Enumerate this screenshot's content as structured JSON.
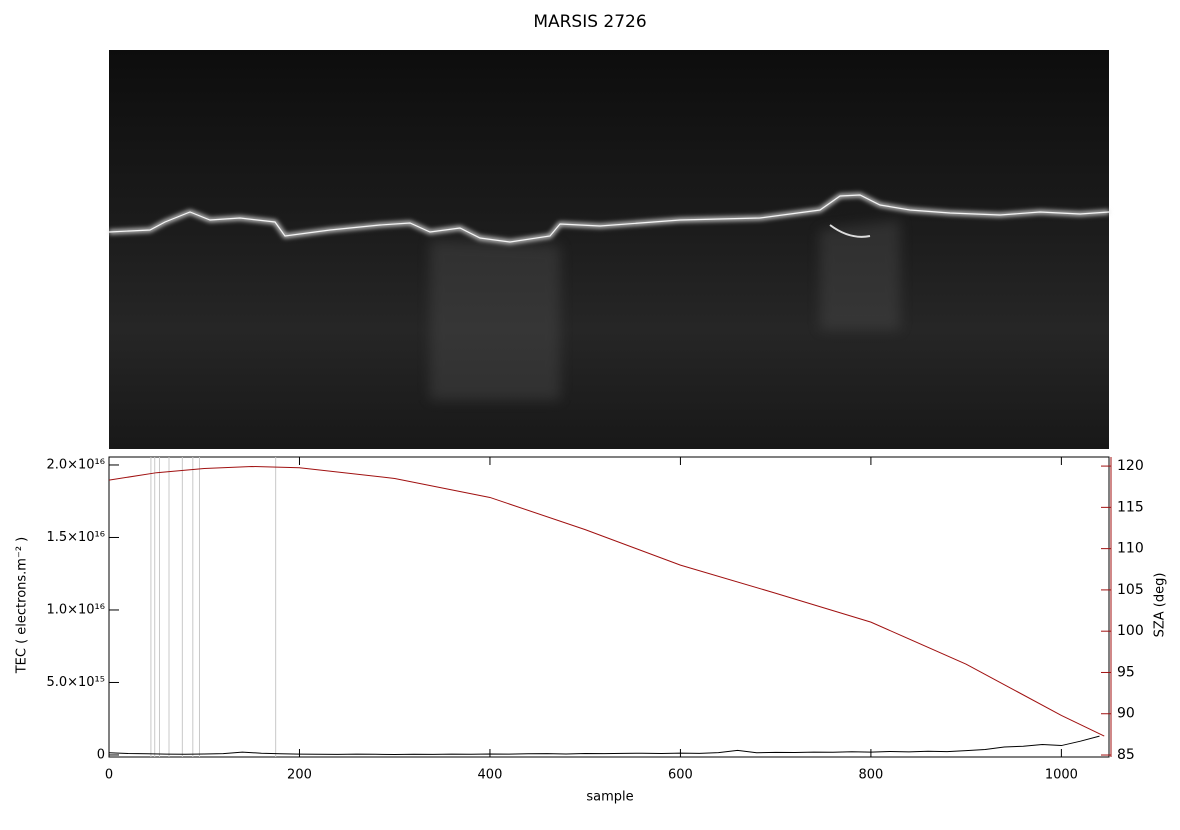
{
  "chart_data": {
    "type": "line",
    "title": "MARSIS 2726",
    "x_label": "sample",
    "y_label": "TEC ( electrons.m⁻² )",
    "y2_label": "SZA (deg)",
    "xlim": [
      0,
      1050
    ],
    "xticks": [
      0,
      200,
      400,
      600,
      800,
      1000
    ],
    "ylim": [
      -140000000000000.0,
      2.055e+16
    ],
    "yticks": [
      0,
      {
        "value": 5000000000000000.0,
        "label": "5.0×10¹⁵"
      },
      {
        "value": 1e+16,
        "label": "1.0×10¹⁶"
      },
      {
        "value": 1.5e+16,
        "label": "1.5×10¹⁶"
      },
      {
        "value": 2e+16,
        "label": "2.0×10¹⁶"
      }
    ],
    "y2lim": [
      84.76,
      121.1
    ],
    "y2ticks": [
      85,
      90,
      95,
      100,
      105,
      110,
      115,
      120
    ],
    "y2_color": "#a01010",
    "vlines": [
      44,
      48,
      53,
      63,
      77,
      88,
      95,
      175
    ],
    "vline_color": "#c8c8c8",
    "series": [
      {
        "name": "TEC",
        "color": "#000000",
        "x": [
          0,
          20,
          40,
          60,
          80,
          100,
          120,
          140,
          160,
          180,
          200,
          220,
          240,
          260,
          280,
          300,
          320,
          340,
          360,
          380,
          400,
          420,
          440,
          460,
          480,
          500,
          520,
          540,
          560,
          580,
          600,
          620,
          640,
          660,
          680,
          700,
          720,
          740,
          760,
          780,
          800,
          820,
          840,
          860,
          880,
          900,
          920,
          940,
          960,
          980,
          1000,
          1020,
          1040
        ],
        "values": [
          150000000000000.0,
          100000000000000.0,
          80000000000000.0,
          60000000000000.0,
          50000000000000.0,
          70000000000000.0,
          90000000000000.0,
          200000000000000.0,
          120000000000000.0,
          80000000000000.0,
          60000000000000.0,
          50000000000000.0,
          40000000000000.0,
          60000000000000.0,
          50000000000000.0,
          30000000000000.0,
          50000000000000.0,
          40000000000000.0,
          60000000000000.0,
          50000000000000.0,
          70000000000000.0,
          60000000000000.0,
          80000000000000.0,
          90000000000000.0,
          70000000000000.0,
          100000000000000.0,
          90000000000000.0,
          110000000000000.0,
          120000000000000.0,
          100000000000000.0,
          130000000000000.0,
          110000000000000.0,
          160000000000000.0,
          320000000000000.0,
          150000000000000.0,
          180000000000000.0,
          170000000000000.0,
          200000000000000.0,
          190000000000000.0,
          220000000000000.0,
          200000000000000.0,
          240000000000000.0,
          210000000000000.0,
          260000000000000.0,
          230000000000000.0,
          300000000000000.0,
          380000000000000.0,
          550000000000000.0,
          600000000000000.0,
          720000000000000.0,
          650000000000000.0,
          950000000000000.0,
          1300000000000000.0
        ]
      },
      {
        "name": "SZA",
        "color": "#a01010",
        "axis": "y2",
        "x": [
          0,
          50,
          100,
          150,
          200,
          300,
          400,
          500,
          600,
          700,
          800,
          900,
          1000,
          1045
        ],
        "values": [
          118.3,
          119.2,
          119.7,
          119.95,
          119.8,
          118.5,
          116.2,
          112.3,
          108.0,
          104.6,
          101.1,
          96.0,
          89.8,
          87.3
        ]
      }
    ]
  }
}
